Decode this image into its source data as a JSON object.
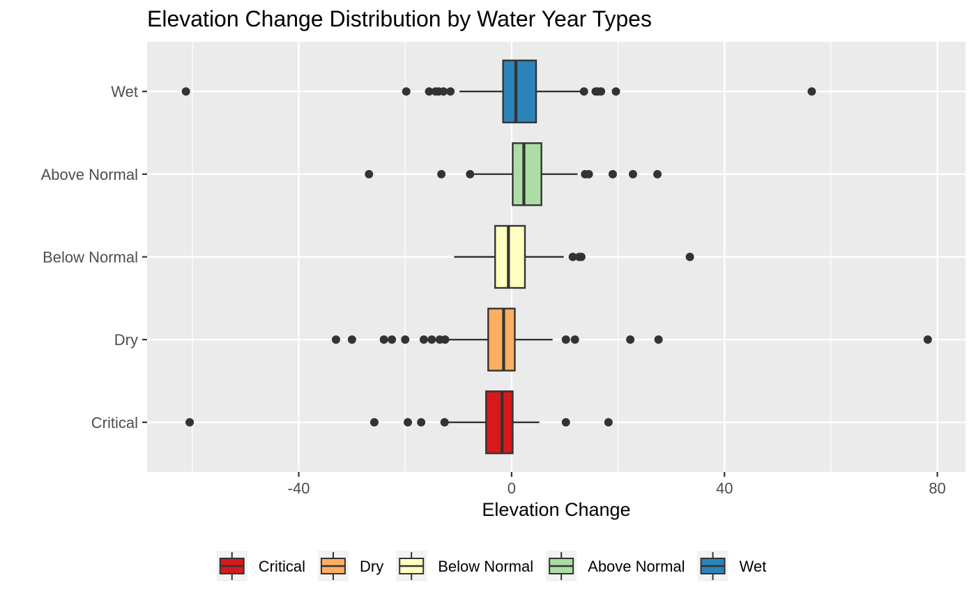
{
  "chart_data": {
    "type": "boxplot",
    "orientation": "horizontal",
    "title": "Elevation Change Distribution by Water Year Types",
    "xlabel": "Elevation Change",
    "ylabel": "",
    "xlim": [
      -68.5,
      85.3
    ],
    "x_ticks": [
      -40,
      0,
      40,
      80
    ],
    "x_tick_labels": [
      "-40",
      "0",
      "40",
      "80"
    ],
    "grid": true,
    "legend_position": "bottom",
    "series": [
      {
        "name": "Critical",
        "color": "#d7191c",
        "whisker_low": -12.5,
        "q1": -4.8,
        "median": -1.8,
        "q3": 0.2,
        "whisker_high": 5.2,
        "outliers": [
          -60.5,
          -25.8,
          -19.5,
          -17.0,
          -12.6,
          10.2,
          18.2
        ]
      },
      {
        "name": "Dry",
        "color": "#fdae61",
        "whisker_low": -12.0,
        "q1": -4.4,
        "median": -1.5,
        "q3": 0.6,
        "whisker_high": 7.7,
        "outliers": [
          -33.0,
          -30.0,
          -24.0,
          -22.5,
          -20.0,
          -16.5,
          -15.0,
          -13.5,
          -12.5,
          10.2,
          11.9,
          22.3,
          27.6,
          78.2
        ]
      },
      {
        "name": "Below Normal",
        "color": "#ffffbf",
        "whisker_low": -10.8,
        "q1": -3.1,
        "median": -0.6,
        "q3": 2.5,
        "whisker_high": 9.8,
        "outliers": [
          11.5,
          12.7,
          13.1,
          33.5
        ]
      },
      {
        "name": "Above Normal",
        "color": "#abdda4",
        "whisker_low": -7.0,
        "q1": 0.2,
        "median": 2.3,
        "q3": 5.6,
        "whisker_high": 12.4,
        "outliers": [
          -26.8,
          -13.2,
          -7.8,
          13.8,
          14.5,
          19.0,
          22.8,
          27.4
        ]
      },
      {
        "name": "Wet",
        "color": "#2b83ba",
        "whisker_low": -9.8,
        "q1": -1.6,
        "median": 0.8,
        "q3": 4.6,
        "whisker_high": 13.5,
        "outliers": [
          -61.2,
          -19.8,
          -15.5,
          -14.3,
          -13.7,
          -12.8,
          -11.5,
          13.6,
          15.8,
          16.2,
          16.8,
          19.6,
          56.4
        ]
      }
    ]
  }
}
